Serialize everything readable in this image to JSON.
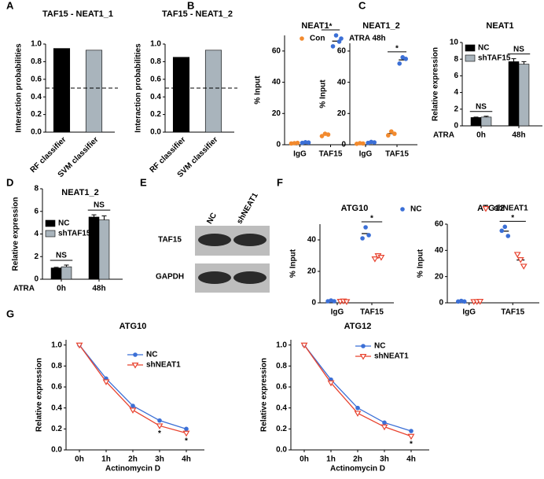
{
  "panel_labels": [
    "A",
    "B",
    "C",
    "D",
    "E",
    "F",
    "G"
  ],
  "blot": {
    "columns": [
      "NC",
      "shNEAT1"
    ],
    "rows": [
      "TAF15",
      "GAPDH"
    ]
  },
  "chart_data": [
    {
      "type": "bar",
      "title": "TAF15 - NEAT1_1",
      "ylabel": "Interaction probabilities",
      "categories": [
        "RF classifier",
        "SVM classifier"
      ],
      "values": [
        0.95,
        0.93
      ],
      "colors": [
        "#000000",
        "#a9b4bc"
      ],
      "threshold": 0.5,
      "ylim": [
        0,
        1
      ],
      "yticks": [
        {
          "value": 0,
          "label": "0.0"
        },
        0.2,
        0.4,
        0.6,
        0.8,
        {
          "value": 1,
          "label": "1.0"
        }
      ]
    },
    {
      "type": "bar",
      "title": "TAF15 - NEAT1_2",
      "ylabel": "Interaction probabilities",
      "categories": [
        "RF classifier",
        "SVM classifier"
      ],
      "values": [
        0.85,
        0.93
      ],
      "colors": [
        "#000000",
        "#a9b4bc"
      ],
      "threshold": 0.5,
      "ylim": [
        0,
        1
      ],
      "yticks": [
        {
          "value": 0,
          "label": "0.0"
        },
        0.2,
        0.4,
        0.6,
        0.8,
        {
          "value": 1,
          "label": "1.0"
        }
      ]
    },
    {
      "type": "dot",
      "title": "NEAT1",
      "ylabel": "% Input",
      "categories": [
        "IgG",
        "TAF15"
      ],
      "series": [
        {
          "name": "Con",
          "color": "#f28a2e",
          "marker": "circle",
          "values": [
            [
              0.8,
              1,
              1.2
            ],
            [
              5.5,
              7,
              6.5
            ]
          ]
        },
        {
          "color": "#3b6fd6",
          "marker": "circle",
          "values": [
            [
              1.2,
              1.6,
              1.4
            ],
            [
              63,
              70,
              66
            ]
          ]
        }
      ],
      "significance": [
        null,
        "*"
      ],
      "ylim": [
        0,
        70
      ],
      "yticks": [
        0,
        20,
        40,
        60
      ]
    },
    {
      "type": "dot",
      "title": "NEAT1_2",
      "ylabel": "% Input",
      "categories": [
        "IgG",
        "TAF15"
      ],
      "series": [
        {
          "color": "#f28a2e",
          "marker": "circle",
          "values": [
            [
              0.6,
              1,
              0.8
            ],
            [
              6,
              8.5,
              7
            ]
          ]
        },
        {
          "name": "ATRA 48h",
          "color": "#3b6fd6",
          "marker": "circle",
          "values": [
            [
              1.2,
              1.8,
              1.5
            ],
            [
              52,
              56,
              55
            ]
          ]
        }
      ],
      "significance": [
        null,
        "*"
      ],
      "ylim": [
        0,
        65
      ],
      "yticks": [
        0,
        20,
        40,
        60
      ]
    },
    {
      "type": "bar",
      "title": "NEAT1",
      "ylabel": "Relative expression",
      "xlabel": "ATRA",
      "categories": [
        "0h",
        "48h"
      ],
      "series": [
        {
          "name": "NC",
          "color": "#000000",
          "values": [
            1,
            7.7
          ],
          "errors": [
            0.05,
            0.35
          ]
        },
        {
          "name": "shTAF15",
          "color": "#a9b4bc",
          "values": [
            1.05,
            7.4
          ],
          "errors": [
            0.1,
            0.3
          ]
        }
      ],
      "significance": [
        "NS",
        "NS"
      ],
      "ylim": [
        0,
        10
      ],
      "yticks": [
        0,
        2,
        4,
        6,
        8,
        10
      ]
    },
    {
      "type": "bar",
      "title": "NEAT1_2",
      "ylabel": "Relative expression",
      "xlabel": "ATRA",
      "categories": [
        "0h",
        "48h"
      ],
      "series": [
        {
          "name": "NC",
          "color": "#000000",
          "values": [
            1,
            5.5
          ],
          "errors": [
            0.05,
            0.2
          ]
        },
        {
          "name": "shTAF15",
          "color": "#a9b4bc",
          "values": [
            1.1,
            5.25
          ],
          "errors": [
            0.15,
            0.35
          ]
        }
      ],
      "significance": [
        "NS",
        "NS"
      ],
      "ylim": [
        0,
        8
      ],
      "yticks": [
        0,
        2,
        4,
        6,
        8
      ]
    },
    {
      "type": "dot",
      "title": "ATG10",
      "ylabel": "% Input",
      "categories": [
        "IgG",
        "TAF15"
      ],
      "series": [
        {
          "name": "NC",
          "color": "#3b6fd6",
          "marker": "circle",
          "values": [
            [
              1,
              1.5,
              1
            ],
            [
              41,
              48,
              43
            ]
          ]
        },
        {
          "color": "#e8432f",
          "marker": "triangle-open",
          "values": [
            [
              1,
              1.2,
              0.8
            ],
            [
              28,
              30,
              29
            ]
          ]
        }
      ],
      "significance": [
        null,
        "*"
      ],
      "ylim": [
        0,
        50
      ],
      "yticks": [
        0,
        20,
        40
      ]
    },
    {
      "type": "dot",
      "title": "ATG12",
      "ylabel": "% Input",
      "categories": [
        "IgG",
        "TAF15"
      ],
      "series": [
        {
          "color": "#3b6fd6",
          "marker": "circle",
          "values": [
            [
              1,
              1.5,
              1
            ],
            [
              55,
              58,
              51
            ]
          ]
        },
        {
          "name": "shNEAT1",
          "color": "#e8432f",
          "marker": "triangle-open",
          "values": [
            [
              1,
              1,
              1.2
            ],
            [
              37,
              33,
              28
            ]
          ]
        }
      ],
      "significance": [
        null,
        "*"
      ],
      "ylim": [
        0,
        60
      ],
      "yticks": [
        0,
        20,
        40,
        60
      ]
    },
    {
      "type": "line",
      "title": "ATG10",
      "ylabel": "Relative expression",
      "xlabel": "Actinomycin D",
      "categories": [
        "0h",
        "1h",
        "2h",
        "3h",
        "4h"
      ],
      "series": [
        {
          "name": "NC",
          "color": "#3b6fd6",
          "marker": "circle",
          "values": [
            1,
            0.68,
            0.42,
            0.28,
            0.2
          ]
        },
        {
          "name": "shNEAT1",
          "color": "#e8432f",
          "marker": "triangle-open",
          "values": [
            1,
            0.65,
            0.38,
            0.23,
            0.16
          ]
        }
      ],
      "significance": [
        null,
        null,
        null,
        "*",
        "*"
      ],
      "ylim": [
        0,
        1.05
      ],
      "yticks": [
        {
          "value": 0,
          "label": "0.0"
        },
        0.2,
        0.4,
        0.6,
        0.8,
        {
          "value": 1,
          "label": "1.0"
        }
      ]
    },
    {
      "type": "line",
      "title": "ATG12",
      "ylabel": "Relative expression",
      "xlabel": "Actinomycin D",
      "categories": [
        "0h",
        "1h",
        "2h",
        "3h",
        "4h"
      ],
      "series": [
        {
          "name": "NC",
          "color": "#3b6fd6",
          "marker": "circle",
          "values": [
            1,
            0.67,
            0.4,
            0.26,
            0.18
          ]
        },
        {
          "name": "shNEAT1",
          "color": "#e8432f",
          "marker": "triangle-open",
          "values": [
            1,
            0.64,
            0.35,
            0.22,
            0.13
          ]
        }
      ],
      "significance": [
        null,
        null,
        null,
        null,
        "*"
      ],
      "ylim": [
        0,
        1.05
      ],
      "yticks": [
        {
          "value": 0,
          "label": "0.0"
        },
        0.2,
        0.4,
        0.6,
        0.8,
        {
          "value": 1,
          "label": "1.0"
        }
      ]
    }
  ]
}
